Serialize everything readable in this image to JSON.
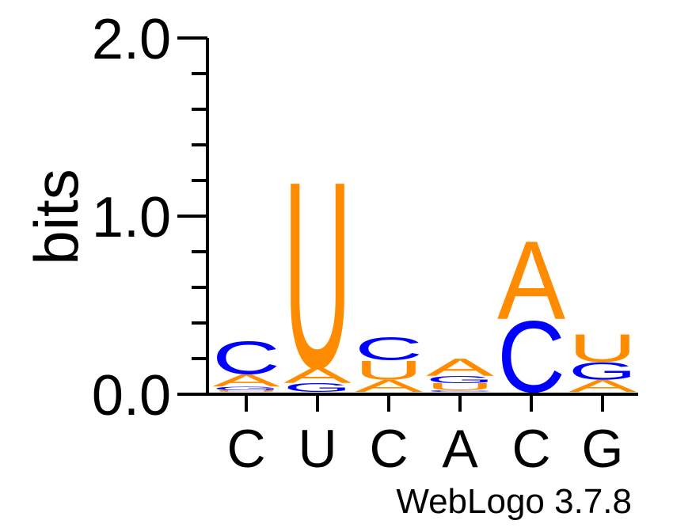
{
  "chart_data": {
    "type": "sequence-logo",
    "ylabel": "bits",
    "ylim": [
      0,
      2
    ],
    "y_ticks": [
      "0.0",
      "1.0",
      "2.0"
    ],
    "positions": [
      "C",
      "U",
      "C",
      "A",
      "C",
      "G"
    ],
    "footer": "WebLogo 3.7.8",
    "colors": {
      "A": "#ff8c00",
      "U": "#ff8c00",
      "C": "#0000ff",
      "G": "#0000ff"
    },
    "stacks": [
      [
        {
          "letter": "U",
          "bits": 0.01
        },
        {
          "letter": "G",
          "bits": 0.02
        },
        {
          "letter": "A",
          "bits": 0.07
        },
        {
          "letter": "C",
          "bits": 0.19
        }
      ],
      [
        {
          "letter": "G",
          "bits": 0.05
        },
        {
          "letter": "A",
          "bits": 0.09
        },
        {
          "letter": "U",
          "bits": 1.07
        }
      ],
      [
        {
          "letter": "A",
          "bits": 0.07
        },
        {
          "letter": "U",
          "bits": 0.11
        },
        {
          "letter": "C",
          "bits": 0.13
        }
      ],
      [
        {
          "letter": "C",
          "bits": 0.01
        },
        {
          "letter": "U",
          "bits": 0.04
        },
        {
          "letter": "G",
          "bits": 0.04
        },
        {
          "letter": "A",
          "bits": 0.1
        }
      ],
      [
        {
          "letter": "C",
          "bits": 0.41
        },
        {
          "letter": "A",
          "bits": 0.45
        }
      ],
      [
        {
          "letter": "A",
          "bits": 0.07
        },
        {
          "letter": "G",
          "bits": 0.1
        },
        {
          "letter": "U",
          "bits": 0.16
        }
      ]
    ]
  }
}
